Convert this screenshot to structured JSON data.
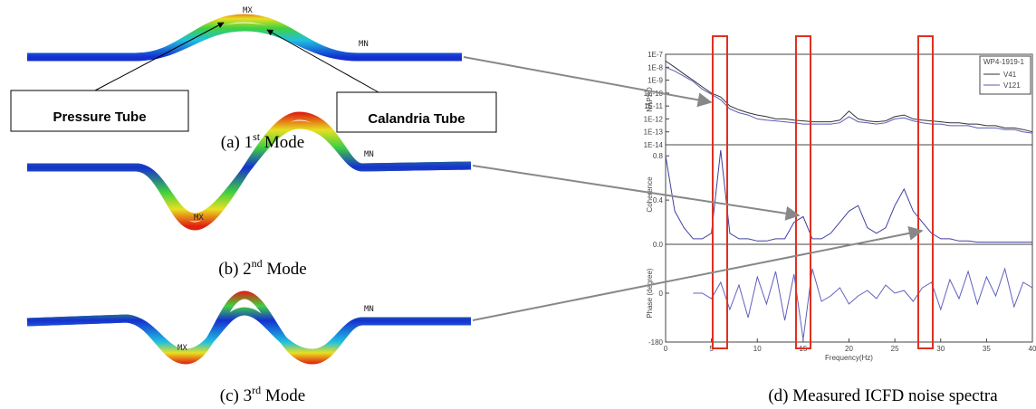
{
  "panels": [
    {
      "prefix": "(a) 1",
      "sup": "st",
      "suffix": " Mode",
      "max_label": "MX",
      "min_label": "MN",
      "boxes": [
        "Pressure Tube",
        "Calandria Tube"
      ]
    },
    {
      "prefix": "(b) 2",
      "sup": "nd",
      "suffix": " Mode",
      "max_label": "MX",
      "min_label": "MN"
    },
    {
      "prefix": "(c) 3",
      "sup": "rd",
      "suffix": " Mode",
      "max_label": "MX",
      "min_label": "MN"
    }
  ],
  "caption_d": "(d) Measured ICFD noise spectra",
  "chart_data": [
    {
      "type": "line",
      "ylabel": "NAPSD",
      "log_scale": true,
      "legend_title": "WP4-1919-1",
      "xlim": [
        0,
        40
      ],
      "ylim": [
        1e-14,
        1e-07
      ],
      "yticks": [
        {
          "value": 1e-07,
          "label": "1E-7"
        },
        {
          "value": 1e-08,
          "label": "1E-8"
        },
        {
          "value": 1e-09,
          "label": "1E-9"
        },
        {
          "value": 1e-10,
          "label": "1E-10"
        },
        {
          "value": 1e-11,
          "label": "1E-11"
        },
        {
          "value": 1e-12,
          "label": "1E-12"
        },
        {
          "value": 1e-13,
          "label": "1E-13"
        },
        {
          "value": 1e-14,
          "label": "1E-14"
        }
      ],
      "x": [
        0,
        1,
        2,
        3,
        4,
        5,
        6,
        7,
        8,
        9,
        10,
        11,
        12,
        13,
        14,
        15,
        16,
        17,
        18,
        19,
        20,
        21,
        22,
        23,
        24,
        25,
        26,
        27,
        28,
        29,
        30,
        31,
        32,
        33,
        34,
        35,
        36,
        37,
        38,
        39,
        40
      ],
      "series": [
        {
          "name": "V41",
          "color": "#333333",
          "values": [
            3e-08,
            1e-08,
            3e-09,
            1e-09,
            3e-10,
            1e-10,
            5e-11,
            1e-11,
            5e-12,
            3e-12,
            2e-12,
            1.5e-12,
            1e-12,
            1e-12,
            8e-13,
            7e-13,
            6e-13,
            6e-13,
            6e-13,
            8e-13,
            4e-12,
            1e-12,
            7e-13,
            6e-13,
            7e-13,
            1.5e-12,
            2e-12,
            1e-12,
            8e-13,
            7e-13,
            6e-13,
            5e-13,
            5e-13,
            4e-13,
            4e-13,
            3e-13,
            3e-13,
            2e-13,
            2e-13,
            1.5e-13,
            1e-13
          ]
        },
        {
          "name": "V121",
          "color": "#5a5ab8",
          "values": [
            1e-08,
            5e-09,
            2e-09,
            8e-10,
            2e-10,
            8e-11,
            3e-11,
            6e-12,
            3e-12,
            2e-12,
            1e-12,
            8e-13,
            7e-13,
            6e-13,
            5e-13,
            4e-13,
            4e-13,
            4e-13,
            4e-13,
            5e-13,
            1.5e-12,
            6e-13,
            5e-13,
            4e-13,
            5e-13,
            1e-12,
            1.2e-12,
            7e-13,
            5e-13,
            4e-13,
            4e-13,
            3e-13,
            3e-13,
            3e-13,
            2e-13,
            2e-13,
            2e-13,
            1.5e-13,
            1.5e-13,
            1e-13,
            8e-14
          ]
        }
      ]
    },
    {
      "type": "line",
      "ylabel": "Coherence",
      "xlim": [
        0,
        40
      ],
      "ylim": [
        0,
        0.9
      ],
      "yticks": [
        {
          "value": 0,
          "label": "0.0"
        },
        0.4,
        0.8
      ],
      "x": [
        0,
        1,
        2,
        3,
        4,
        5,
        6,
        7,
        8,
        9,
        10,
        11,
        12,
        13,
        14,
        15,
        16,
        17,
        18,
        19,
        20,
        21,
        22,
        23,
        24,
        25,
        26,
        27,
        28,
        29,
        30,
        31,
        32,
        33,
        34,
        35,
        36,
        37,
        38,
        39,
        40
      ],
      "series": [
        {
          "color": "#4040a0",
          "values": [
            0.8,
            0.3,
            0.15,
            0.05,
            0.05,
            0.1,
            0.85,
            0.1,
            0.05,
            0.05,
            0.03,
            0.03,
            0.05,
            0.05,
            0.2,
            0.25,
            0.05,
            0.05,
            0.1,
            0.2,
            0.3,
            0.35,
            0.15,
            0.1,
            0.15,
            0.35,
            0.5,
            0.3,
            0.2,
            0.1,
            0.05,
            0.05,
            0.03,
            0.03,
            0.02,
            0.02,
            0.02,
            0.02,
            0.02,
            0.02,
            0.02
          ]
        }
      ]
    },
    {
      "type": "line",
      "ylabel": "Phase (degree)",
      "xlabel": "Frequency(Hz)",
      "xlim": [
        0,
        40
      ],
      "ylim": [
        -180,
        180
      ],
      "yticks": [
        -180,
        0
      ],
      "xticks": [
        0,
        5,
        10,
        15,
        20,
        25,
        30,
        35,
        40
      ],
      "x": [
        0,
        1,
        2,
        3,
        4,
        5,
        6,
        7,
        8,
        9,
        10,
        11,
        12,
        13,
        14,
        15,
        16,
        17,
        18,
        19,
        20,
        21,
        22,
        23,
        24,
        25,
        26,
        27,
        28,
        29,
        30,
        31,
        32,
        33,
        34,
        35,
        36,
        37,
        38,
        39,
        40
      ],
      "series": [
        {
          "color": "#6060c0",
          "values": [
            null,
            null,
            null,
            0,
            0,
            -20,
            40,
            -60,
            30,
            -90,
            60,
            -40,
            80,
            -100,
            70,
            -170,
            90,
            -30,
            -10,
            20,
            -40,
            -10,
            10,
            -20,
            30,
            0,
            10,
            -30,
            20,
            40,
            -60,
            50,
            -20,
            80,
            -40,
            60,
            -10,
            90,
            -50,
            40,
            20
          ]
        }
      ]
    }
  ]
}
